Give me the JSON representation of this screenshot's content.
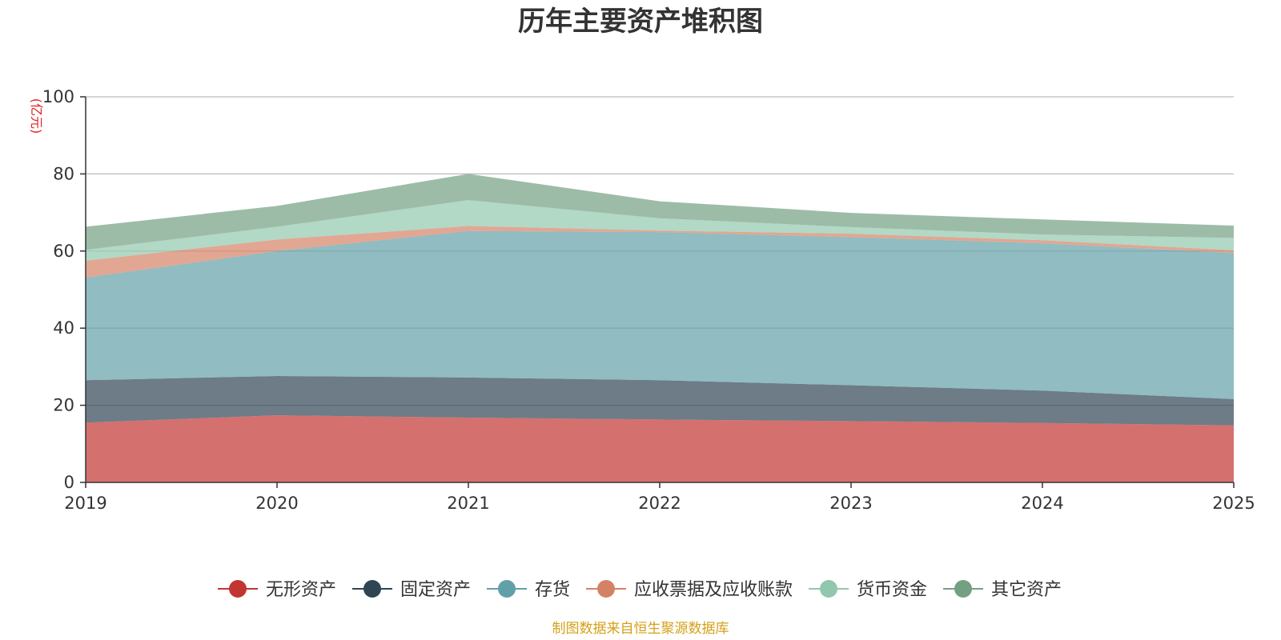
{
  "chart_data": {
    "type": "area",
    "stacked": true,
    "title": "历年主要资产堆积图",
    "unit_label": "(亿元)",
    "source_note": "制图数据来自恒生聚源数据库",
    "x": [
      "2019",
      "2020",
      "2021",
      "2022",
      "2023",
      "2024",
      "2025"
    ],
    "ylim": [
      0,
      100
    ],
    "yticks": [
      0,
      20,
      40,
      60,
      80,
      100
    ],
    "grid": true,
    "legend_position": "bottom",
    "series": [
      {
        "name": "无形资产",
        "color": "#c23531",
        "values": [
          15.5,
          17.4,
          16.8,
          16.3,
          15.9,
          15.4,
          14.8
        ]
      },
      {
        "name": "固定资产",
        "color": "#2f4554",
        "values": [
          11.0,
          10.2,
          10.4,
          10.2,
          9.3,
          8.4,
          6.8
        ]
      },
      {
        "name": "存货",
        "color": "#61a0a8",
        "values": [
          26.6,
          32.4,
          38.0,
          38.4,
          38.4,
          38.2,
          37.9
        ]
      },
      {
        "name": "应收票据及应收账款",
        "color": "#d48265",
        "values": [
          4.4,
          3.0,
          1.3,
          0.4,
          0.9,
          0.8,
          0.7
        ]
      },
      {
        "name": "货币资金",
        "color": "#91c7ae",
        "values": [
          2.8,
          3.3,
          6.7,
          3.2,
          1.7,
          1.5,
          3.2
        ]
      },
      {
        "name": "其它资产",
        "color": "#749f83",
        "values": [
          6.0,
          5.4,
          6.8,
          4.4,
          3.7,
          3.9,
          3.2
        ]
      }
    ]
  }
}
